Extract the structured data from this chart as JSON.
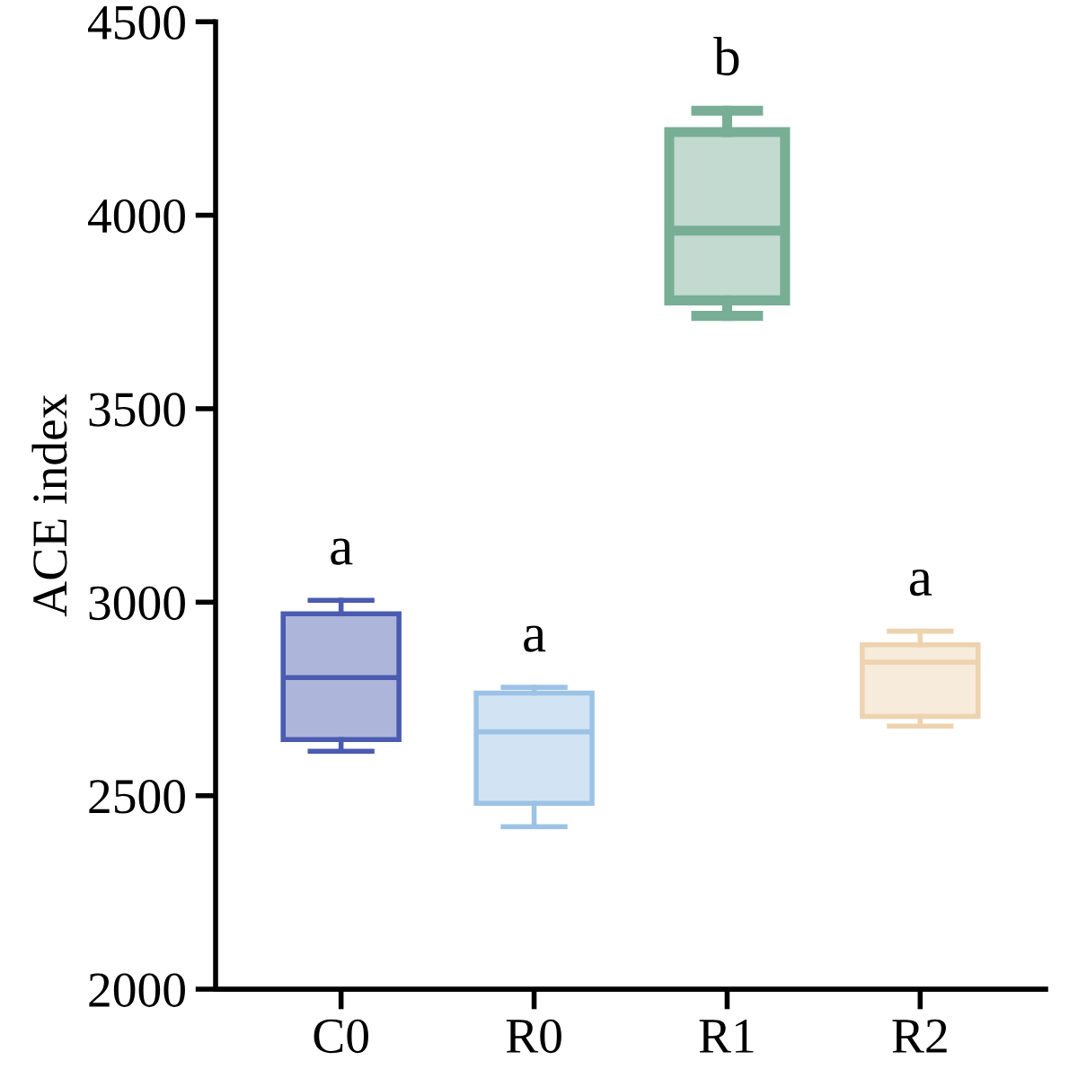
{
  "chart_data": {
    "type": "box",
    "ylabel": "ACE index",
    "categories": [
      "C0",
      "R0",
      "R1",
      "R2"
    ],
    "boxes": [
      {
        "low": 2615,
        "q1": 2645,
        "median": 2805,
        "q3": 2970,
        "high": 3005
      },
      {
        "low": 2420,
        "q1": 2480,
        "median": 2665,
        "q3": 2765,
        "high": 2780
      },
      {
        "low": 3740,
        "q1": 3780,
        "median": 3960,
        "q3": 4215,
        "high": 4270
      },
      {
        "low": 2680,
        "q1": 2705,
        "median": 2845,
        "q3": 2890,
        "high": 2925
      }
    ],
    "colors": [
      "#4a5bb0",
      "#9cc3e6",
      "#78ae96",
      "#eed3b0"
    ],
    "ylim": [
      2000,
      4500
    ],
    "yticks": [
      2000,
      2500,
      3000,
      3500,
      4000,
      4500
    ],
    "grid": false,
    "legend": false,
    "annotations": [
      "a",
      "a",
      "b",
      "a"
    ]
  }
}
